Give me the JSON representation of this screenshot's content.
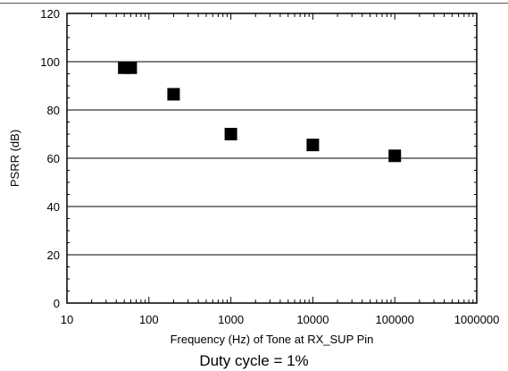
{
  "chart_data": {
    "type": "scatter",
    "title": "",
    "xlabel": "Frequency (Hz) of Tone at RX_SUP Pin",
    "ylabel": "PSRR (dB)",
    "x_scale": "log",
    "xlim": [
      10,
      1000000
    ],
    "ylim": [
      0,
      120
    ],
    "x_tick_labels": [
      "10",
      "100",
      "1000",
      "10000",
      "100000",
      "1000000"
    ],
    "y_tick_labels": [
      "0",
      "20",
      "40",
      "60",
      "80",
      "100",
      "120"
    ],
    "grid": "horizontal",
    "legend": "none",
    "marker": "square",
    "marker_color": "#000000",
    "series": [
      {
        "x": [
          50,
          60,
          200,
          1000,
          10000,
          100000
        ],
        "y": [
          97.5,
          97.5,
          86.5,
          70,
          65.5,
          61
        ]
      }
    ]
  },
  "caption": "Duty cycle = 1%"
}
